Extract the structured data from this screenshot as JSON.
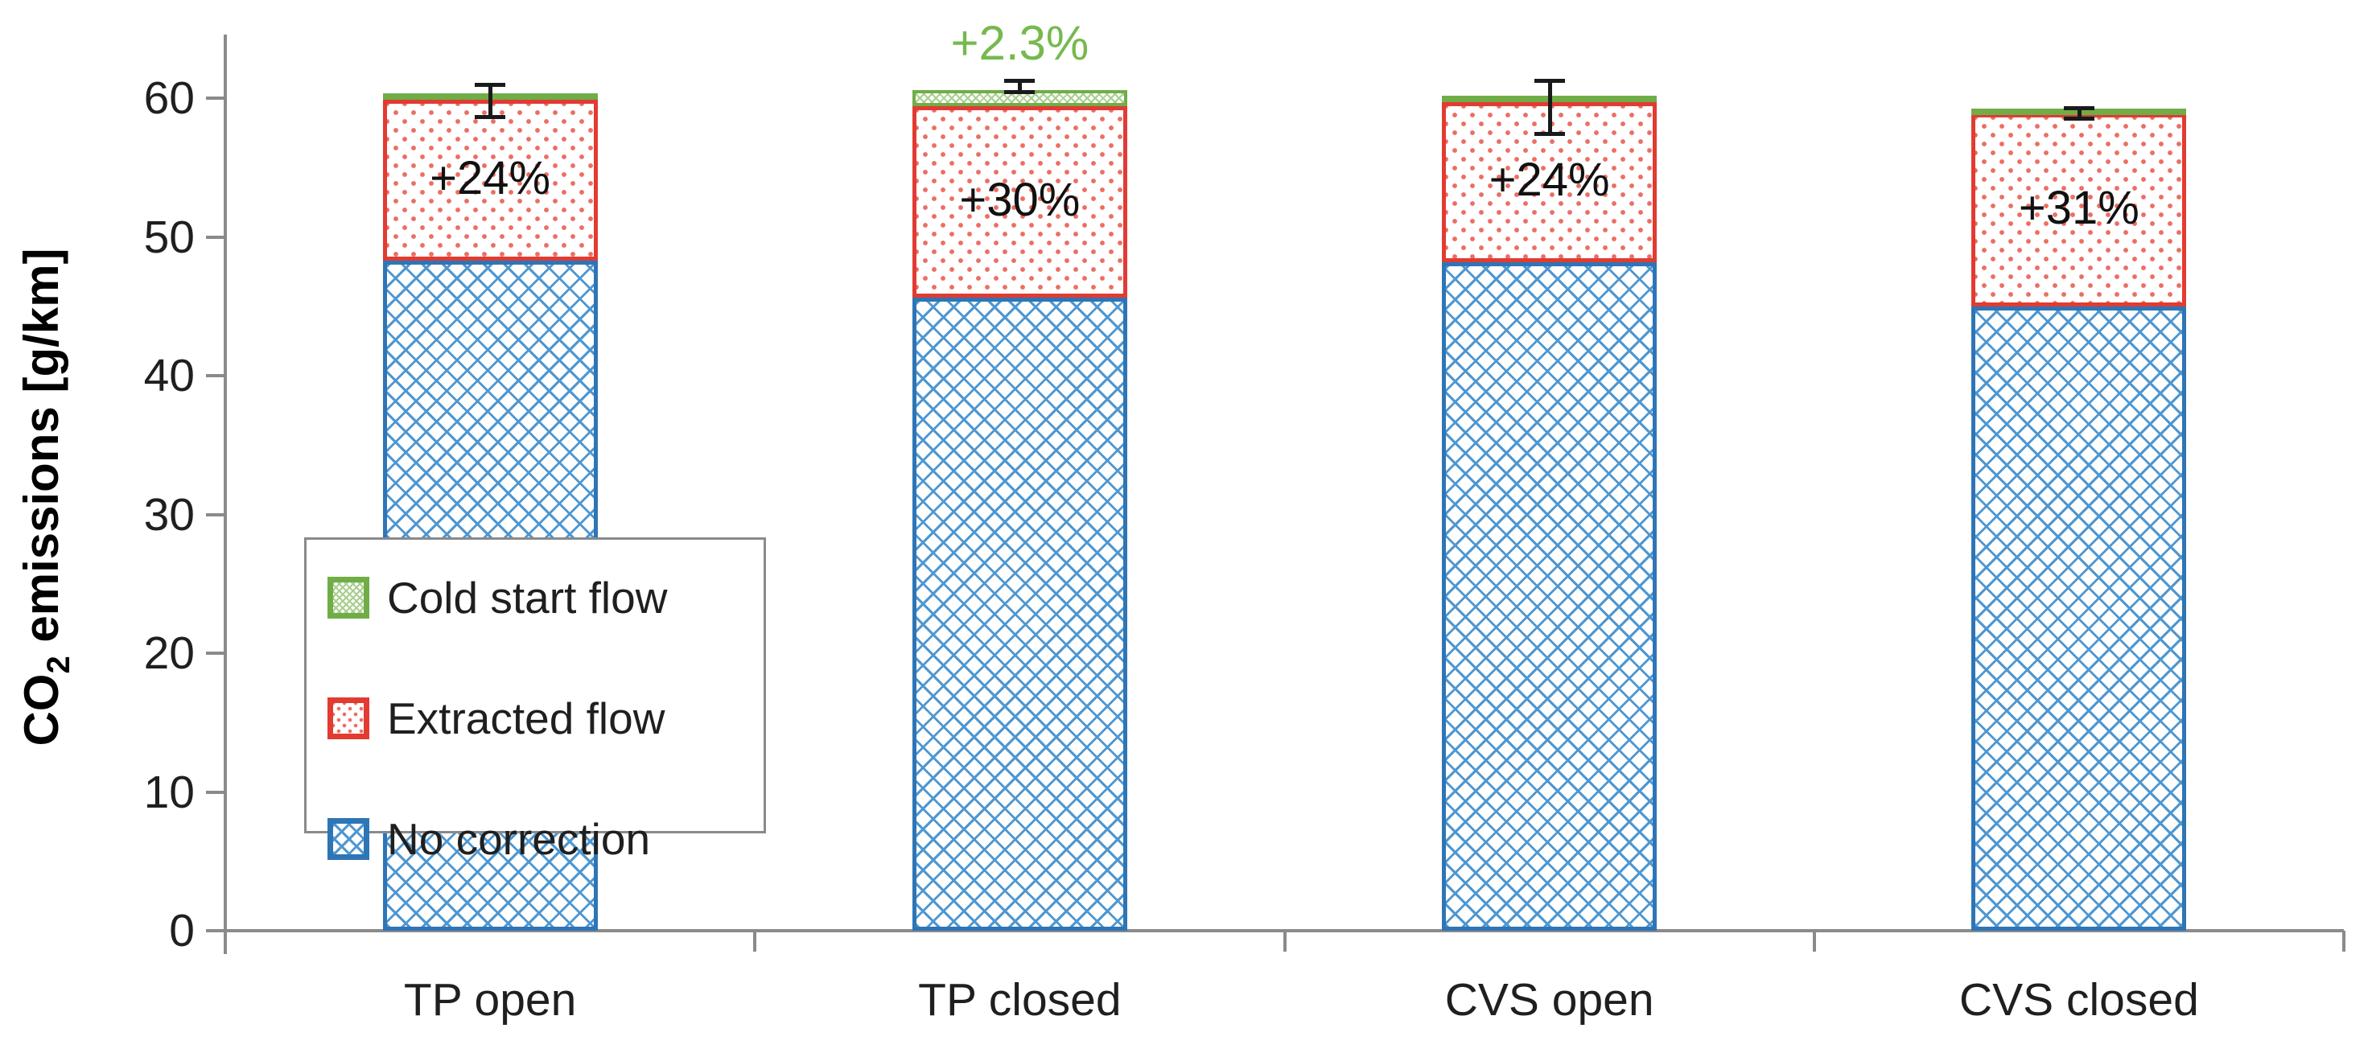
{
  "y_axis": {
    "title": {
      "prefix": "CO",
      "subscript": "2",
      "suffix": " emissions [g/km]"
    },
    "ticks": [
      "0",
      "10",
      "20",
      "30",
      "40",
      "50",
      "60"
    ]
  },
  "chart_data": {
    "type": "bar",
    "stacked": true,
    "categories": [
      "TP open",
      "TP closed",
      "CVS open",
      "CVS closed"
    ],
    "series": [
      {
        "name": "No correction",
        "values": [
          48.3,
          45.6,
          48.2,
          45.0
        ]
      },
      {
        "name": "Extracted flow",
        "values": [
          11.6,
          13.8,
          11.5,
          13.9
        ]
      },
      {
        "name": "Cold start flow",
        "values": [
          0.45,
          1.2,
          0.45,
          0.35
        ]
      }
    ],
    "bar_labels": [
      "+24%",
      "+30%",
      "+24%",
      "+31%"
    ],
    "annotation": {
      "text": "+2.3%",
      "category": "TP closed",
      "category_index": 1
    },
    "error_bars": [
      {
        "low": 58.5,
        "high": 61.1
      },
      {
        "low": 60.3,
        "high": 61.4
      },
      {
        "low": 57.3,
        "high": 61.4
      },
      {
        "low": 58.4,
        "high": 59.4
      }
    ],
    "ylabel": "CO2 emissions [g/km]",
    "xlabel": "",
    "ylim": [
      0,
      65
    ],
    "grid": false,
    "legend_position": "inside-left"
  },
  "legend": {
    "items": [
      {
        "label": "Cold start flow",
        "pattern": "green-hatch"
      },
      {
        "label": "Extracted flow",
        "pattern": "red-dots"
      },
      {
        "label": "No correction",
        "pattern": "blue-crosshatch"
      }
    ]
  },
  "colors": {
    "green_border": "#70AD47",
    "green_pattern": "#A9CE8E",
    "green_annotation_text": "#76B94E",
    "red_border": "#E13B32",
    "red_dots": "#EC6E63",
    "blue_border": "#2E75B6",
    "blue_pattern": "#4E97D1",
    "axis_gray": "#8A8A8A",
    "text": "#1F1F1F",
    "error_bar": "#1A1A1A",
    "background": "#FFFFFF"
  }
}
